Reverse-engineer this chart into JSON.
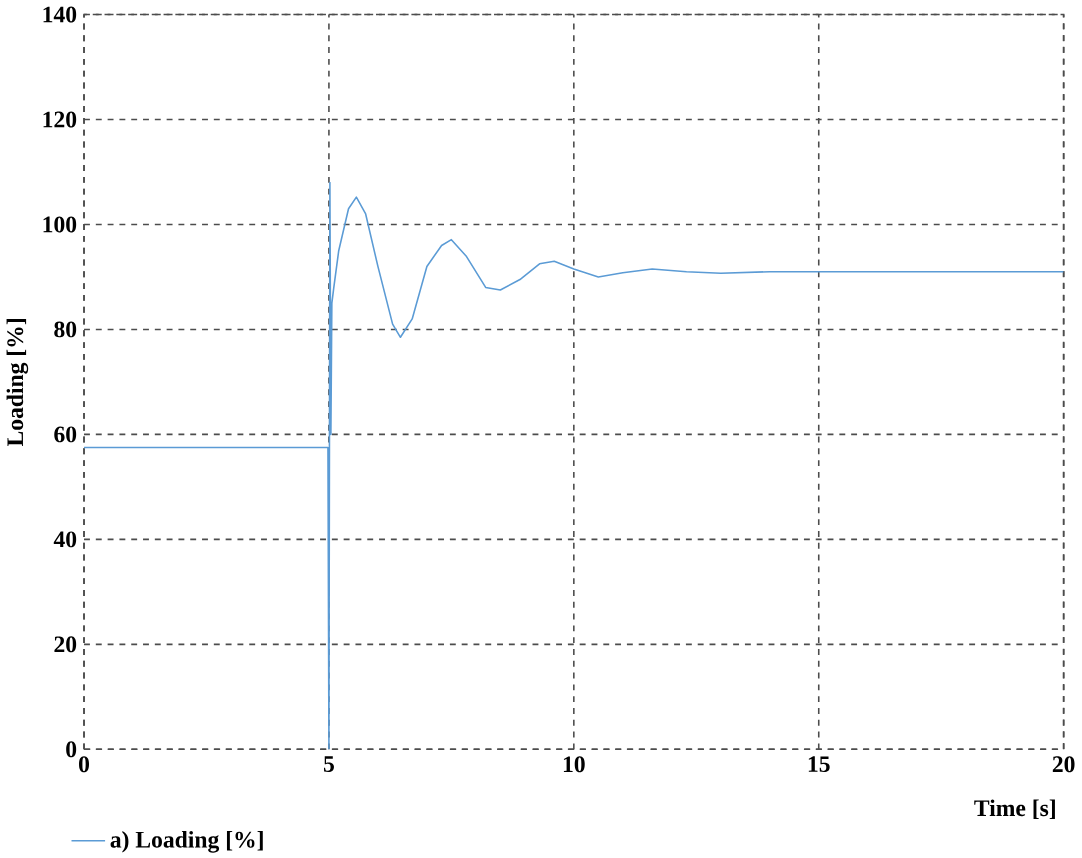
{
  "chart_data": {
    "type": "line",
    "xlabel": "Time [s]",
    "ylabel": "Loading [%]",
    "x": [
      0,
      4.98,
      5.0,
      5.02,
      5.04,
      5.06,
      5.1,
      5.2,
      5.4,
      5.56,
      5.75,
      6.0,
      6.3,
      6.46,
      6.7,
      7.0,
      7.3,
      7.5,
      7.8,
      8.2,
      8.5,
      8.9,
      9.3,
      9.6,
      10.0,
      10.5,
      11.0,
      11.6,
      12.3,
      13.0,
      14.0,
      15.0,
      17.0,
      20.0
    ],
    "series": [
      {
        "name": "a) Loading [%]",
        "color": "#5b9bd5",
        "values": [
          57.5,
          57.5,
          0,
          108,
          60,
          85,
          88,
          95,
          103,
          105.2,
          102,
          92,
          81,
          78.5,
          82,
          92,
          96,
          97.1,
          94,
          88,
          87.5,
          89.5,
          92.5,
          93,
          91.5,
          90,
          90.8,
          91.5,
          91,
          90.7,
          91,
          91,
          91,
          91
        ]
      }
    ],
    "xlim": [
      0,
      20
    ],
    "ylim": [
      0,
      140
    ],
    "xticks": [
      0,
      5,
      10,
      15,
      20
    ],
    "yticks": [
      0,
      20,
      40,
      60,
      80,
      100,
      120,
      140
    ],
    "grid": true,
    "legend": "bottom left"
  }
}
